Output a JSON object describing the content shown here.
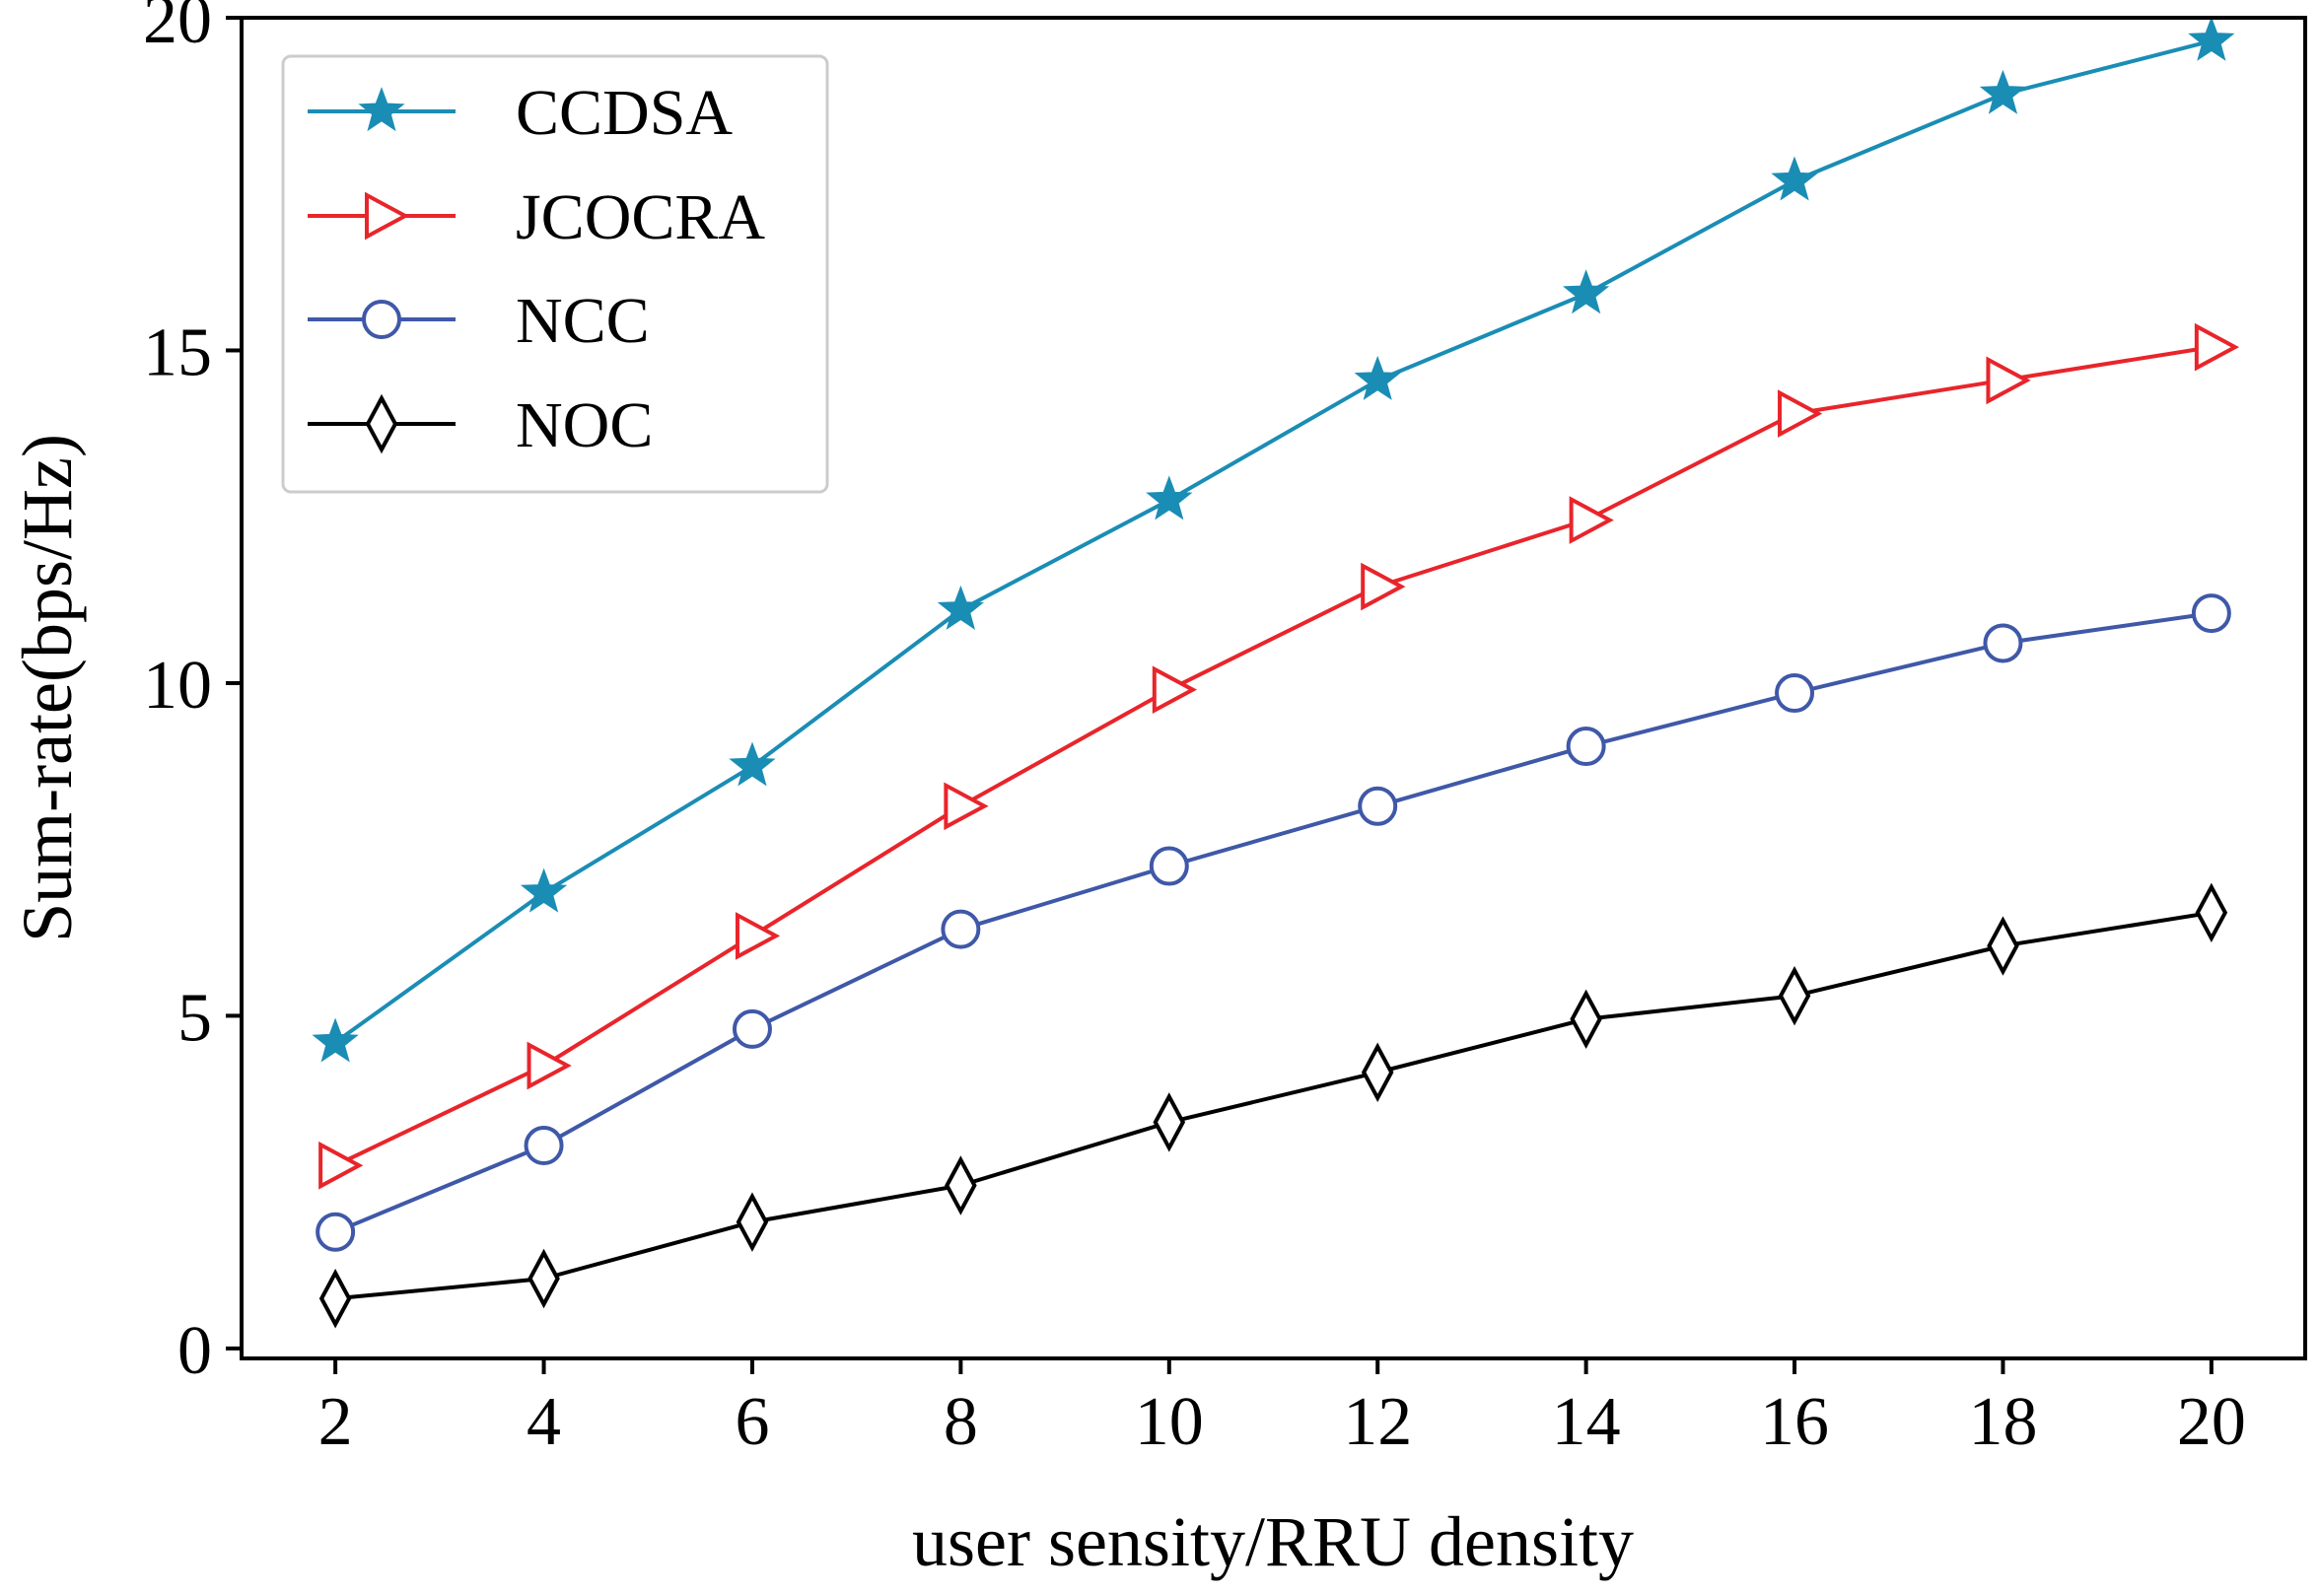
{
  "chart_data": {
    "type": "line",
    "title": "",
    "xlabel": "user sensity/RRU density",
    "ylabel": "Sum-rate(bps/Hz)",
    "x": [
      2,
      4,
      6,
      8,
      10,
      12,
      14,
      16,
      18,
      20
    ],
    "xticks": [
      "2",
      "4",
      "6",
      "8",
      "10",
      "12",
      "14",
      "16",
      "18",
      "20"
    ],
    "yticks": [
      "0",
      "5",
      "10",
      "15",
      "20"
    ],
    "xlim": [
      1.1,
      20.9
    ],
    "ylim": [
      -0.15,
      20.0
    ],
    "grid": false,
    "legend_position": "top-left",
    "series": [
      {
        "name": "CCDSA",
        "color": "#1a8db5",
        "marker": "star",
        "values": [
          4.6,
          6.85,
          8.75,
          11.1,
          12.75,
          14.55,
          15.85,
          17.55,
          18.85,
          19.65
        ]
      },
      {
        "name": "JCOCRA",
        "color": "#e8252b",
        "marker": "triangle-right",
        "values": [
          2.75,
          4.25,
          6.2,
          8.15,
          9.9,
          11.45,
          12.45,
          14.05,
          14.55,
          15.05
        ]
      },
      {
        "name": "NCC",
        "color": "#3f58a8",
        "marker": "circle",
        "values": [
          1.75,
          3.05,
          4.8,
          6.3,
          7.25,
          8.15,
          9.05,
          9.85,
          10.6,
          11.05
        ]
      },
      {
        "name": "NOC",
        "color": "#000000",
        "marker": "thin-diamond",
        "values": [
          0.75,
          1.05,
          1.9,
          2.45,
          3.4,
          4.15,
          4.95,
          5.3,
          6.05,
          6.55
        ]
      }
    ]
  }
}
